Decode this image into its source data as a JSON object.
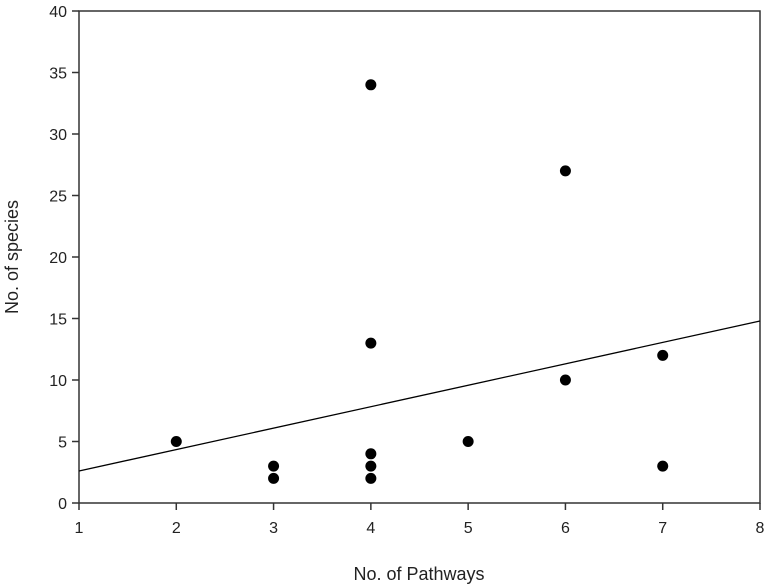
{
  "chart_data": {
    "type": "scatter",
    "title": "",
    "xlabel": "No. of Pathways",
    "ylabel": "No. of species",
    "xlim": [
      1,
      8
    ],
    "ylim": [
      0,
      40
    ],
    "x_ticks": [
      1,
      2,
      3,
      4,
      5,
      6,
      7,
      8
    ],
    "y_ticks": [
      0,
      5,
      10,
      15,
      20,
      25,
      30,
      35,
      40
    ],
    "grid": false,
    "legend": null,
    "series": [
      {
        "name": "observations",
        "marker": "filled-circle",
        "color": "#000000",
        "points": [
          {
            "x": 2,
            "y": 5
          },
          {
            "x": 3,
            "y": 3
          },
          {
            "x": 3,
            "y": 2
          },
          {
            "x": 4,
            "y": 34
          },
          {
            "x": 4,
            "y": 13
          },
          {
            "x": 4,
            "y": 4
          },
          {
            "x": 4,
            "y": 3
          },
          {
            "x": 4,
            "y": 2
          },
          {
            "x": 5,
            "y": 5
          },
          {
            "x": 6,
            "y": 27
          },
          {
            "x": 6,
            "y": 10
          },
          {
            "x": 7,
            "y": 12
          },
          {
            "x": 7,
            "y": 3
          }
        ]
      }
    ],
    "regression_line": {
      "x": [
        1,
        8
      ],
      "y": [
        2.6,
        14.8
      ],
      "color": "#000000"
    }
  }
}
